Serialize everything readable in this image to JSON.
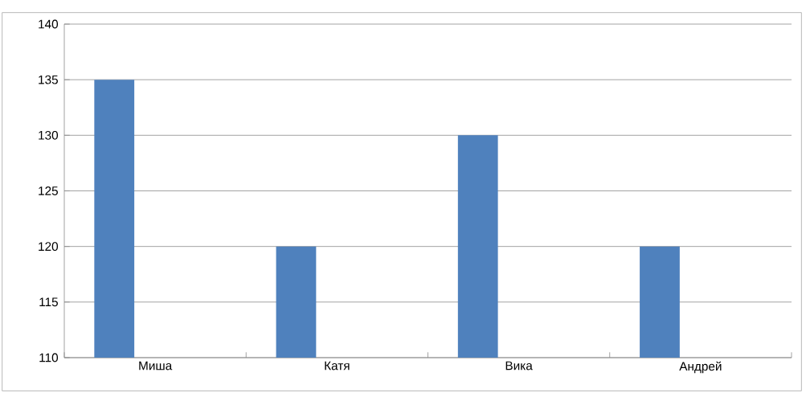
{
  "chart_data": {
    "type": "bar",
    "categories": [
      "Миша",
      "Катя",
      "Вика",
      "Андрей"
    ],
    "values": [
      135,
      120,
      130,
      120
    ],
    "color": "#4f81bd",
    "ylim": [
      110,
      140
    ],
    "yticks": [
      110,
      115,
      120,
      125,
      130,
      135,
      140
    ],
    "grid": "y"
  }
}
